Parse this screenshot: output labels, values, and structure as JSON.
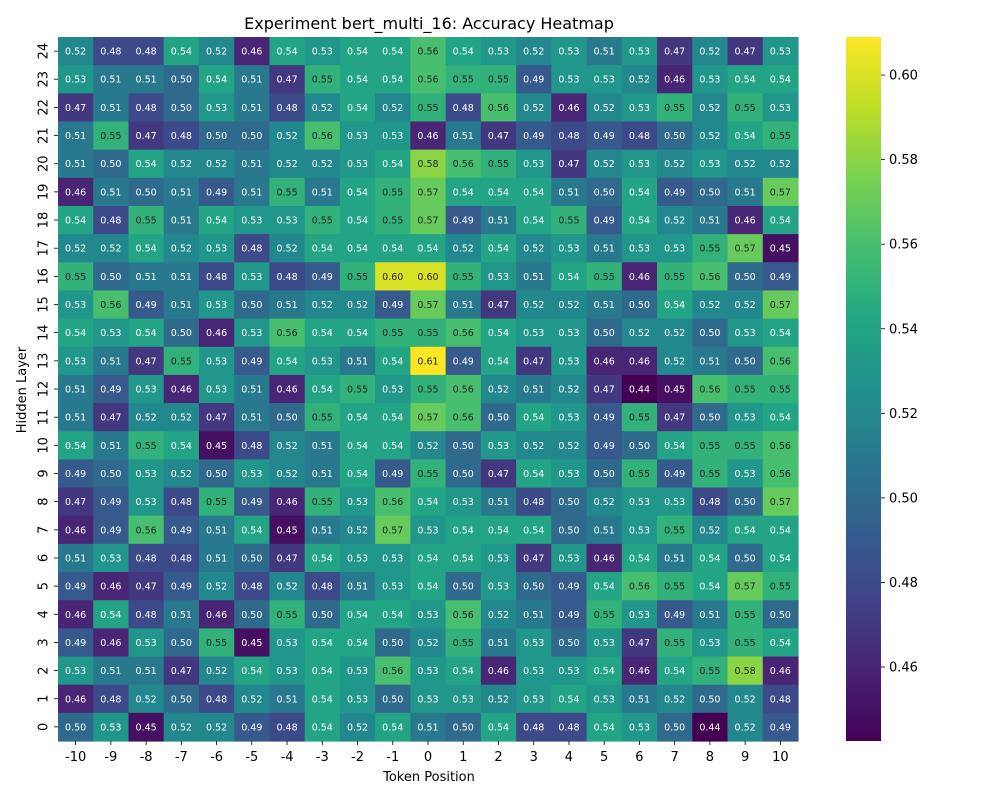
{
  "chart_data": {
    "type": "heatmap",
    "title": "Experiment bert_multi_16: Accuracy Heatmap",
    "xlabel": "Token Position",
    "ylabel": "Hidden Layer",
    "x": [
      -10,
      -9,
      -8,
      -7,
      -6,
      -5,
      -4,
      -3,
      -2,
      -1,
      0,
      1,
      2,
      3,
      4,
      5,
      6,
      7,
      8,
      9,
      10
    ],
    "y": [
      24,
      23,
      22,
      21,
      20,
      19,
      18,
      17,
      16,
      15,
      14,
      13,
      12,
      11,
      10,
      9,
      8,
      7,
      6,
      5,
      4,
      3,
      2,
      1,
      0
    ],
    "values": [
      [
        0.52,
        0.48,
        0.48,
        0.54,
        0.52,
        0.46,
        0.54,
        0.53,
        0.54,
        0.54,
        0.56,
        0.54,
        0.53,
        0.52,
        0.53,
        0.51,
        0.53,
        0.47,
        0.52,
        0.47,
        0.53
      ],
      [
        0.53,
        0.51,
        0.51,
        0.5,
        0.54,
        0.51,
        0.47,
        0.55,
        0.54,
        0.54,
        0.56,
        0.55,
        0.55,
        0.49,
        0.53,
        0.53,
        0.52,
        0.46,
        0.53,
        0.54,
        0.54
      ],
      [
        0.47,
        0.51,
        0.48,
        0.5,
        0.53,
        0.51,
        0.48,
        0.52,
        0.54,
        0.52,
        0.55,
        0.48,
        0.56,
        0.52,
        0.46,
        0.52,
        0.53,
        0.55,
        0.52,
        0.55,
        0.53
      ],
      [
        0.51,
        0.55,
        0.47,
        0.48,
        0.5,
        0.5,
        0.52,
        0.56,
        0.53,
        0.53,
        0.46,
        0.51,
        0.47,
        0.49,
        0.48,
        0.49,
        0.48,
        0.5,
        0.52,
        0.54,
        0.55
      ],
      [
        0.51,
        0.5,
        0.54,
        0.52,
        0.52,
        0.51,
        0.52,
        0.52,
        0.53,
        0.54,
        0.58,
        0.56,
        0.55,
        0.53,
        0.47,
        0.52,
        0.53,
        0.52,
        0.53,
        0.52,
        0.52
      ],
      [
        0.46,
        0.51,
        0.5,
        0.51,
        0.49,
        0.51,
        0.55,
        0.51,
        0.54,
        0.55,
        0.57,
        0.54,
        0.54,
        0.54,
        0.51,
        0.5,
        0.54,
        0.49,
        0.5,
        0.51,
        0.57
      ],
      [
        0.54,
        0.48,
        0.55,
        0.51,
        0.54,
        0.53,
        0.53,
        0.55,
        0.54,
        0.55,
        0.57,
        0.49,
        0.51,
        0.54,
        0.55,
        0.49,
        0.54,
        0.52,
        0.51,
        0.46,
        0.54
      ],
      [
        0.52,
        0.52,
        0.54,
        0.52,
        0.53,
        0.48,
        0.52,
        0.54,
        0.54,
        0.54,
        0.54,
        0.52,
        0.54,
        0.52,
        0.53,
        0.51,
        0.53,
        0.53,
        0.55,
        0.57,
        0.45
      ],
      [
        0.55,
        0.5,
        0.51,
        0.51,
        0.48,
        0.53,
        0.48,
        0.49,
        0.55,
        0.6,
        0.6,
        0.55,
        0.53,
        0.51,
        0.54,
        0.55,
        0.46,
        0.55,
        0.56,
        0.5,
        0.49
      ],
      [
        0.53,
        0.56,
        0.49,
        0.51,
        0.53,
        0.5,
        0.51,
        0.52,
        0.52,
        0.49,
        0.57,
        0.51,
        0.47,
        0.52,
        0.52,
        0.51,
        0.5,
        0.54,
        0.52,
        0.52,
        0.57
      ],
      [
        0.54,
        0.53,
        0.54,
        0.5,
        0.46,
        0.53,
        0.56,
        0.54,
        0.54,
        0.55,
        0.55,
        0.56,
        0.54,
        0.53,
        0.53,
        0.5,
        0.52,
        0.52,
        0.5,
        0.53,
        0.54
      ],
      [
        0.53,
        0.51,
        0.47,
        0.55,
        0.53,
        0.49,
        0.54,
        0.53,
        0.51,
        0.54,
        0.61,
        0.49,
        0.54,
        0.47,
        0.53,
        0.46,
        0.46,
        0.52,
        0.51,
        0.5,
        0.56
      ],
      [
        0.51,
        0.49,
        0.53,
        0.46,
        0.53,
        0.51,
        0.46,
        0.54,
        0.55,
        0.53,
        0.55,
        0.56,
        0.52,
        0.51,
        0.52,
        0.47,
        0.44,
        0.45,
        0.56,
        0.55,
        0.55
      ],
      [
        0.51,
        0.47,
        0.52,
        0.52,
        0.47,
        0.51,
        0.5,
        0.55,
        0.54,
        0.54,
        0.57,
        0.56,
        0.5,
        0.54,
        0.53,
        0.49,
        0.55,
        0.47,
        0.5,
        0.53,
        0.54
      ],
      [
        0.54,
        0.51,
        0.55,
        0.54,
        0.45,
        0.48,
        0.52,
        0.51,
        0.54,
        0.54,
        0.52,
        0.5,
        0.53,
        0.52,
        0.52,
        0.49,
        0.5,
        0.54,
        0.55,
        0.55,
        0.56
      ],
      [
        0.49,
        0.5,
        0.53,
        0.52,
        0.5,
        0.53,
        0.52,
        0.51,
        0.54,
        0.49,
        0.55,
        0.5,
        0.47,
        0.54,
        0.53,
        0.5,
        0.55,
        0.49,
        0.55,
        0.53,
        0.56
      ],
      [
        0.47,
        0.49,
        0.53,
        0.48,
        0.55,
        0.49,
        0.46,
        0.55,
        0.53,
        0.56,
        0.54,
        0.53,
        0.51,
        0.48,
        0.5,
        0.52,
        0.53,
        0.53,
        0.48,
        0.5,
        0.57
      ],
      [
        0.46,
        0.49,
        0.56,
        0.49,
        0.51,
        0.54,
        0.45,
        0.51,
        0.52,
        0.57,
        0.53,
        0.54,
        0.54,
        0.54,
        0.5,
        0.51,
        0.53,
        0.55,
        0.52,
        0.54,
        0.54
      ],
      [
        0.51,
        0.53,
        0.48,
        0.48,
        0.51,
        0.5,
        0.47,
        0.54,
        0.53,
        0.53,
        0.54,
        0.54,
        0.53,
        0.47,
        0.53,
        0.46,
        0.54,
        0.51,
        0.54,
        0.5,
        0.54
      ],
      [
        0.49,
        0.46,
        0.47,
        0.49,
        0.52,
        0.48,
        0.52,
        0.48,
        0.51,
        0.53,
        0.54,
        0.5,
        0.53,
        0.5,
        0.49,
        0.54,
        0.56,
        0.55,
        0.54,
        0.57,
        0.55
      ],
      [
        0.46,
        0.54,
        0.48,
        0.51,
        0.46,
        0.5,
        0.55,
        0.5,
        0.54,
        0.54,
        0.53,
        0.56,
        0.52,
        0.51,
        0.49,
        0.55,
        0.53,
        0.49,
        0.51,
        0.55,
        0.5
      ],
      [
        0.49,
        0.46,
        0.53,
        0.5,
        0.55,
        0.45,
        0.53,
        0.54,
        0.54,
        0.5,
        0.52,
        0.55,
        0.51,
        0.53,
        0.5,
        0.53,
        0.47,
        0.55,
        0.53,
        0.55,
        0.54
      ],
      [
        0.53,
        0.51,
        0.51,
        0.47,
        0.52,
        0.54,
        0.53,
        0.54,
        0.53,
        0.56,
        0.53,
        0.54,
        0.46,
        0.53,
        0.53,
        0.54,
        0.46,
        0.54,
        0.55,
        0.58,
        0.46
      ],
      [
        0.46,
        0.48,
        0.52,
        0.5,
        0.48,
        0.52,
        0.51,
        0.54,
        0.53,
        0.5,
        0.53,
        0.53,
        0.52,
        0.53,
        0.54,
        0.53,
        0.51,
        0.52,
        0.5,
        0.52,
        0.48
      ],
      [
        0.5,
        0.53,
        0.45,
        0.52,
        0.52,
        0.49,
        0.48,
        0.54,
        0.52,
        0.54,
        0.51,
        0.5,
        0.54,
        0.48,
        0.48,
        0.54,
        0.53,
        0.5,
        0.44,
        0.52,
        0.49
      ]
    ],
    "vmin": 0.4425,
    "vmax": 0.609,
    "colormap": "viridis",
    "colorbar_ticks": [
      0.46,
      0.48,
      0.5,
      0.52,
      0.54,
      0.56,
      0.58,
      0.6
    ],
    "colorbar_tick_labels": [
      "0.46",
      "0.48",
      "0.50",
      "0.52",
      "0.54",
      "0.56",
      "0.58",
      "0.60"
    ]
  }
}
